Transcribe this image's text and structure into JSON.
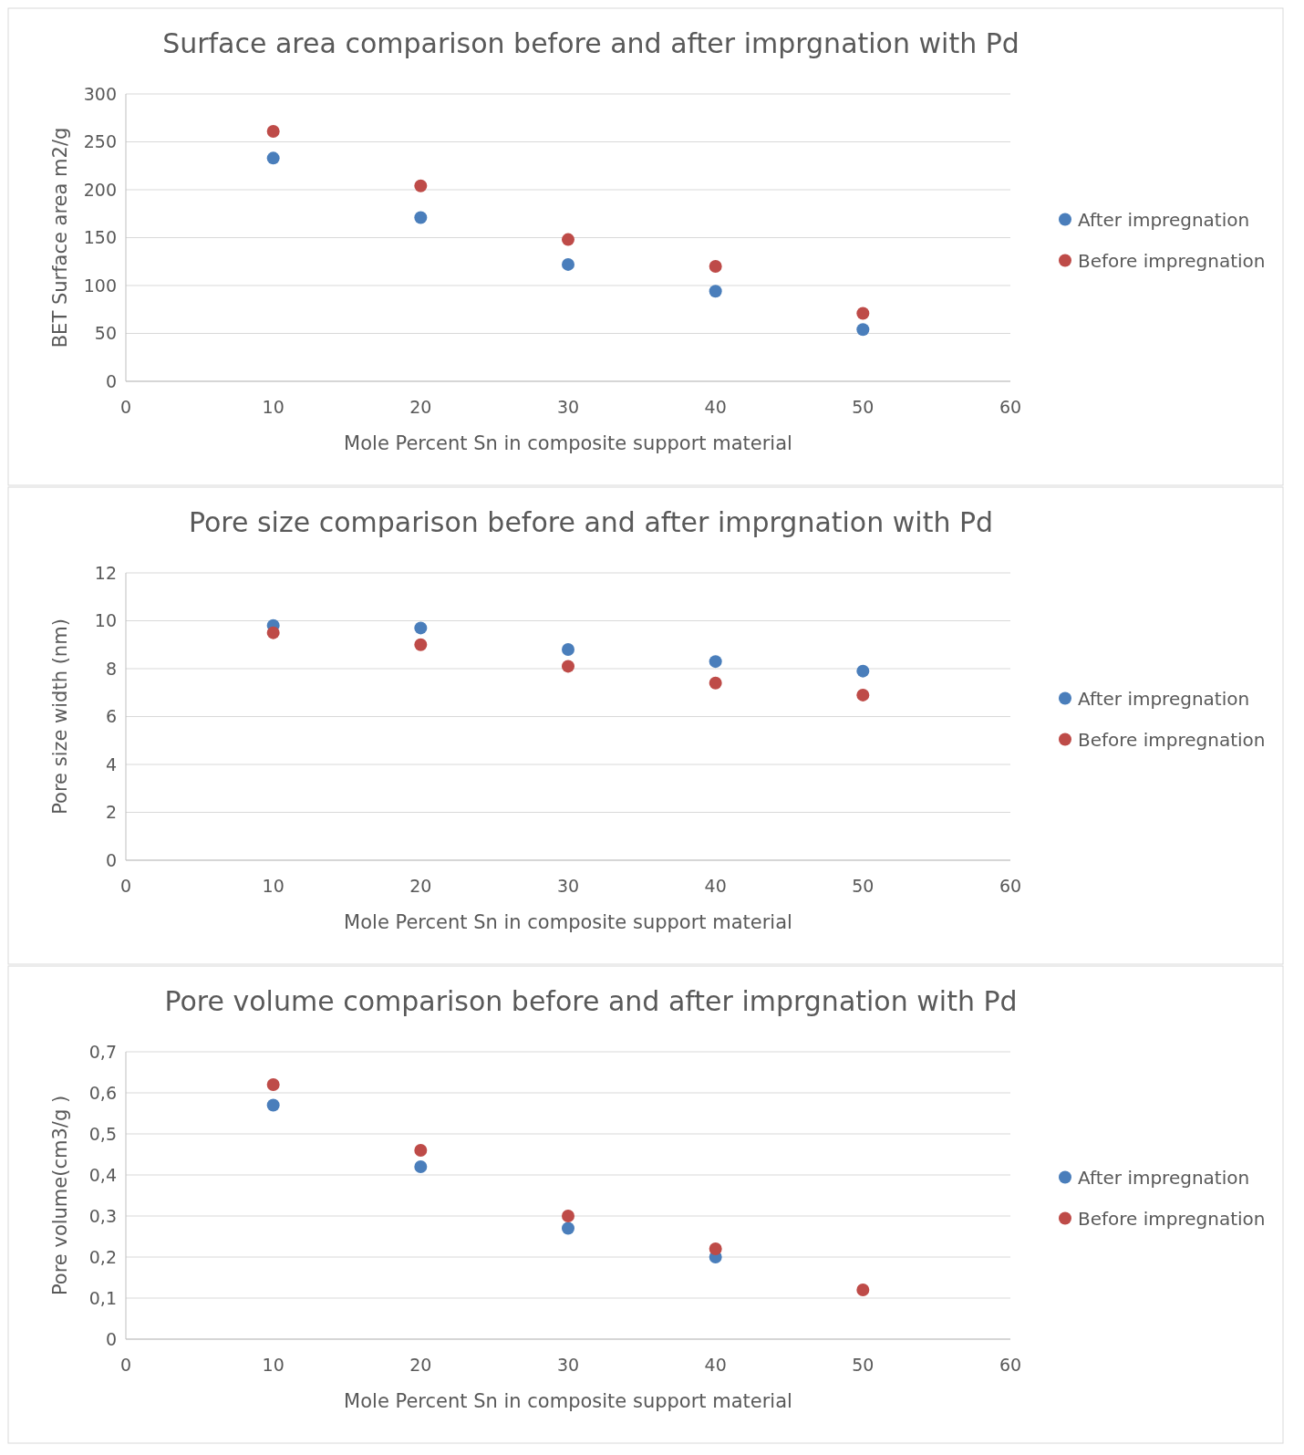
{
  "chart_data": [
    {
      "type": "scatter",
      "title": "Surface area comparison before and after imprgnation with Pd",
      "xlabel": "Mole Percent Sn in composite support material",
      "ylabel": "BET Surface area m2/g",
      "x": [
        10,
        20,
        30,
        40,
        50
      ],
      "xlim": [
        0,
        60
      ],
      "xticks": [
        0,
        10,
        20,
        30,
        40,
        50,
        60
      ],
      "ylim": [
        0,
        300
      ],
      "yticks": [
        0,
        50,
        100,
        150,
        200,
        250,
        300
      ],
      "grid": "y",
      "legend": "right",
      "marker": "circle",
      "series": [
        {
          "name": "After impregnation",
          "color": "#4a7ebb",
          "values": [
            233,
            171,
            122,
            94,
            54
          ]
        },
        {
          "name": "Before impregnation",
          "color": "#be4b48",
          "values": [
            261,
            204,
            148,
            120,
            71
          ]
        }
      ]
    },
    {
      "type": "scatter",
      "title": "Pore size comparison before and after imprgnation with Pd",
      "xlabel": "Mole Percent Sn in composite support material",
      "ylabel": "Pore size width (nm)",
      "x": [
        10,
        20,
        30,
        40,
        50
      ],
      "xlim": [
        0,
        60
      ],
      "xticks": [
        0,
        10,
        20,
        30,
        40,
        50,
        60
      ],
      "ylim": [
        0,
        12
      ],
      "yticks": [
        0,
        2,
        4,
        6,
        8,
        10,
        12
      ],
      "grid": "y",
      "legend": "right",
      "marker": "circle",
      "series": [
        {
          "name": "After impregnation",
          "color": "#4a7ebb",
          "values": [
            9.8,
            9.7,
            8.8,
            8.3,
            7.9
          ]
        },
        {
          "name": "Before impregnation",
          "color": "#be4b48",
          "values": [
            9.5,
            9.0,
            8.1,
            7.4,
            6.9
          ]
        }
      ]
    },
    {
      "type": "scatter",
      "title": "Pore volume comparison before and after imprgnation with Pd",
      "xlabel": "Mole Percent Sn in composite support material",
      "ylabel": "Pore volume(cm3/g )",
      "x": [
        10,
        20,
        30,
        40,
        50
      ],
      "xlim": [
        0,
        60
      ],
      "xticks": [
        0,
        10,
        20,
        30,
        40,
        50,
        60
      ],
      "ylim": [
        0,
        0.7
      ],
      "yticks": [
        0,
        {
          "value": 0.1,
          "label": "0,1"
        },
        {
          "value": 0.2,
          "label": "0,2"
        },
        {
          "value": 0.3,
          "label": "0,3"
        },
        {
          "value": 0.4,
          "label": "0,4"
        },
        {
          "value": 0.5,
          "label": "0,5"
        },
        {
          "value": 0.6,
          "label": "0,6"
        },
        {
          "value": 0.7,
          "label": "0,7"
        }
      ],
      "grid": "y",
      "legend": "right",
      "marker": "circle",
      "series": [
        {
          "name": "After impregnation",
          "color": "#4a7ebb",
          "values": [
            0.57,
            0.42,
            0.27,
            0.2,
            null
          ]
        },
        {
          "name": "Before impregnation",
          "color": "#be4b48",
          "values": [
            0.62,
            0.46,
            0.3,
            0.22,
            0.12
          ]
        }
      ]
    }
  ]
}
